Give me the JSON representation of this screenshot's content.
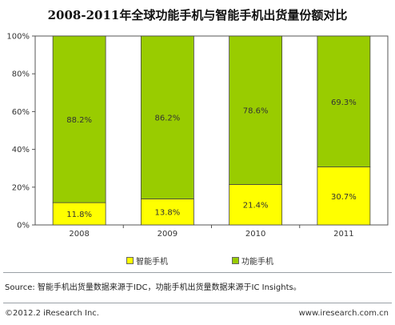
{
  "chart_data": {
    "type": "bar",
    "stacked": true,
    "title": "2008-2011年全球功能手机与智能手机出货量份额对比",
    "categories": [
      "2008",
      "2009",
      "2010",
      "2011"
    ],
    "series": [
      {
        "name": "智能手机",
        "values": [
          11.8,
          13.8,
          21.4,
          30.7
        ],
        "labels": [
          "11.8%",
          "13.8%",
          "21.4%",
          "30.7%"
        ],
        "color": "#ffff00"
      },
      {
        "name": "功能手机",
        "values": [
          88.2,
          86.2,
          78.6,
          69.3
        ],
        "labels": [
          "88.2%",
          "86.2%",
          "78.6%",
          "69.3%"
        ],
        "color": "#99cc00"
      }
    ],
    "ylim": [
      0,
      100
    ],
    "yticks": [
      "0%",
      "20%",
      "40%",
      "60%",
      "80%",
      "100%"
    ],
    "grid": false,
    "legend_position": "bottom"
  },
  "footer": {
    "source": "Source: 智能手机出货量数据来源于IDC，功能手机出货量数据来源于IC Insights。",
    "copyright": "©2012.2 iResearch Inc.",
    "website": "www.iresearch.com.cn"
  }
}
